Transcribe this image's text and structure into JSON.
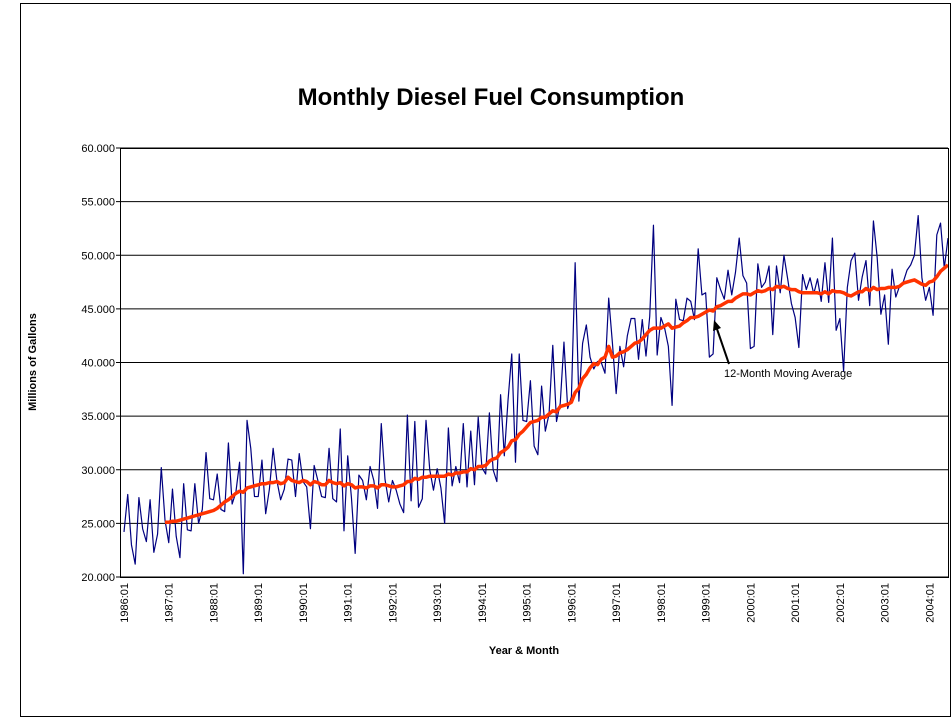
{
  "chart_data": {
    "type": "line",
    "title": "Monthly Diesel Fuel Consumption",
    "xlabel": "Year & Month",
    "ylabel": "Millions of Gallons",
    "annotation": "12-Month Moving Average",
    "ylim": [
      20,
      60
    ],
    "yticks": [
      {
        "value": 20,
        "label": "20.000"
      },
      {
        "value": 25,
        "label": "25.000"
      },
      {
        "value": 30,
        "label": "30.000"
      },
      {
        "value": 35,
        "label": "35.000"
      },
      {
        "value": 40,
        "label": "40.000"
      },
      {
        "value": 45,
        "label": "45.000"
      },
      {
        "value": 50,
        "label": "50.000"
      },
      {
        "value": 55,
        "label": "55.000"
      },
      {
        "value": 60,
        "label": "60.000"
      }
    ],
    "grid": true,
    "categories": [
      "1986:01",
      null,
      null,
      null,
      null,
      null,
      null,
      null,
      null,
      null,
      null,
      null,
      "1987:01",
      null,
      null,
      null,
      null,
      null,
      null,
      null,
      null,
      null,
      null,
      null,
      "1988:01",
      null,
      null,
      null,
      null,
      null,
      null,
      null,
      null,
      null,
      null,
      null,
      "1989:01",
      null,
      null,
      null,
      null,
      null,
      null,
      null,
      null,
      null,
      null,
      null,
      "1990:01",
      null,
      null,
      null,
      null,
      null,
      null,
      null,
      null,
      null,
      null,
      null,
      "1991:01",
      null,
      null,
      null,
      null,
      null,
      null,
      null,
      null,
      null,
      null,
      null,
      "1992:01",
      null,
      null,
      null,
      null,
      null,
      null,
      null,
      null,
      null,
      null,
      null,
      "1993:01",
      null,
      null,
      null,
      null,
      null,
      null,
      null,
      null,
      null,
      null,
      null,
      "1994:01",
      null,
      null,
      null,
      null,
      null,
      null,
      null,
      null,
      null,
      null,
      null,
      "1995:01",
      null,
      null,
      null,
      null,
      null,
      null,
      null,
      null,
      null,
      null,
      null,
      "1996:01",
      null,
      null,
      null,
      null,
      null,
      null,
      null,
      null,
      null,
      null,
      null,
      "1997:01",
      null,
      null,
      null,
      null,
      null,
      null,
      null,
      null,
      null,
      null,
      null,
      "1998:01",
      null,
      null,
      null,
      null,
      null,
      null,
      null,
      null,
      null,
      null,
      null,
      "1999:01",
      null,
      null,
      null,
      null,
      null,
      null,
      null,
      null,
      null,
      null,
      null,
      "2000:01",
      null,
      null,
      null,
      null,
      null,
      null,
      null,
      null,
      null,
      null,
      null,
      "2001:01",
      null,
      null,
      null,
      null,
      null,
      null,
      null,
      null,
      null,
      null,
      null,
      "2002:01",
      null,
      null,
      null,
      null,
      null,
      null,
      null,
      null,
      null,
      null,
      null,
      "2003:01",
      null,
      null,
      null,
      null,
      null,
      null,
      null,
      null,
      null,
      null,
      null,
      "2004:01",
      null,
      null,
      null,
      null,
      null
    ],
    "series": [
      {
        "color": "#000080",
        "width": 1.2,
        "values": [
          24.2,
          27.7,
          23.0,
          21.2,
          27.4,
          24.5,
          23.3,
          27.2,
          22.3,
          24.0,
          30.2,
          25.3,
          23.2,
          28.2,
          23.8,
          21.8,
          28.7,
          24.4,
          24.3,
          28.7,
          25.0,
          26.3,
          31.6,
          27.3,
          27.2,
          29.6,
          26.3,
          26.1,
          32.5,
          26.8,
          27.9,
          30.7,
          20.3,
          34.6,
          32.0,
          27.5,
          27.5,
          30.9,
          25.9,
          28.2,
          32.0,
          29.0,
          27.2,
          28.2,
          31.0,
          30.9,
          27.5,
          31.5,
          28.9,
          28.4,
          24.5,
          30.4,
          29.0,
          27.5,
          27.4,
          32.0,
          27.3,
          27.0,
          33.8,
          24.3,
          31.3,
          27.4,
          22.2,
          29.5,
          29.0,
          27.2,
          30.3,
          29.0,
          26.4,
          34.3,
          29.1,
          27.0,
          29.0,
          28.1,
          26.8,
          26.0,
          35.1,
          27.1,
          34.5,
          26.5,
          27.3,
          34.6,
          30.0,
          28.1,
          30.1,
          28.3,
          25.0,
          33.9,
          28.5,
          30.3,
          28.8,
          34.3,
          28.4,
          33.6,
          28.6,
          34.9,
          30.2,
          29.6,
          35.3,
          30.0,
          28.9,
          37.0,
          31.3,
          36.5,
          40.8,
          30.7,
          40.8,
          34.6,
          34.5,
          38.3,
          32.2,
          31.4,
          37.8,
          33.6,
          35.2,
          41.6,
          34.5,
          36.2,
          41.9,
          35.7,
          36.8,
          49.3,
          36.4,
          41.8,
          43.5,
          40.5,
          39.4,
          40.1,
          40.0,
          39.0,
          46.0,
          41.8,
          37.1,
          41.5,
          39.6,
          42.5,
          44.1,
          44.1,
          40.3,
          44.0,
          40.6,
          44.3,
          52.8,
          40.7,
          44.2,
          43.2,
          41.5,
          36.0,
          45.9,
          44.0,
          43.9,
          46.0,
          45.7,
          44.0,
          50.6,
          46.3,
          46.5,
          40.5,
          40.8,
          47.9,
          46.8,
          45.9,
          48.6,
          46.3,
          48.4,
          51.6,
          48.1,
          47.4,
          41.3,
          41.5,
          49.2,
          47.0,
          47.5,
          49.0,
          42.6,
          49.0,
          46.5,
          50.0,
          47.8,
          45.5,
          44.2,
          41.4,
          48.2,
          46.8,
          47.9,
          46.4,
          47.8,
          45.7,
          49.3,
          45.6,
          51.6,
          43.0,
          44.1,
          39.2,
          47.0,
          49.5,
          50.2,
          45.8,
          48.0,
          49.5,
          45.3,
          53.2,
          49.8,
          44.5,
          46.3,
          41.7,
          48.7,
          46.1,
          47.1,
          47.5,
          48.6,
          49.1,
          50.0,
          53.7,
          47.9,
          45.8,
          47.0,
          44.4,
          51.9,
          53.0,
          48.8,
          51.6
        ]
      },
      {
        "color": "#ff3300",
        "width": 3.5,
        "values": [
          null,
          null,
          null,
          null,
          null,
          null,
          null,
          null,
          null,
          null,
          null,
          25.1,
          25.1,
          25.2,
          25.2,
          25.3,
          25.4,
          25.5,
          25.6,
          25.7,
          25.8,
          25.9,
          26.0,
          26.1,
          26.2,
          26.4,
          26.7,
          27.0,
          27.2,
          27.5,
          27.8,
          28.0,
          27.9,
          28.3,
          28.4,
          28.5,
          28.6,
          28.7,
          28.7,
          28.8,
          28.8,
          28.9,
          28.7,
          28.8,
          29.3,
          29.0,
          28.9,
          28.8,
          29.0,
          28.9,
          28.6,
          28.9,
          28.8,
          28.6,
          28.6,
          29.0,
          28.8,
          28.7,
          28.8,
          28.5,
          28.7,
          28.6,
          28.3,
          28.4,
          28.4,
          28.3,
          28.5,
          28.5,
          28.3,
          28.6,
          28.6,
          28.5,
          28.4,
          28.4,
          28.5,
          28.6,
          28.9,
          28.9,
          29.2,
          29.1,
          29.3,
          29.3,
          29.4,
          29.4,
          29.4,
          29.4,
          29.4,
          29.6,
          29.5,
          29.7,
          29.7,
          29.8,
          29.8,
          30.1,
          30.0,
          30.3,
          30.3,
          30.4,
          30.8,
          31.0,
          31.1,
          31.6,
          31.8,
          32.1,
          32.7,
          32.8,
          33.3,
          33.6,
          34.0,
          34.4,
          34.5,
          34.6,
          34.9,
          34.9,
          35.2,
          35.5,
          35.4,
          35.9,
          36.0,
          36.1,
          36.3,
          37.2,
          37.6,
          38.5,
          38.9,
          39.5,
          39.9,
          39.8,
          40.3,
          40.5,
          41.5,
          40.5,
          40.6,
          40.9,
          41.0,
          41.2,
          41.5,
          41.8,
          41.9,
          42.2,
          42.6,
          43.0,
          43.2,
          43.2,
          43.2,
          43.4,
          43.6,
          43.2,
          43.3,
          43.4,
          43.7,
          43.9,
          44.2,
          44.2,
          44.3,
          44.5,
          44.7,
          44.9,
          44.8,
          45.2,
          45.3,
          45.5,
          45.7,
          45.7,
          46.0,
          46.2,
          46.4,
          46.4,
          46.3,
          46.5,
          46.7,
          46.6,
          46.7,
          46.9,
          46.8,
          47.1,
          47.0,
          47.1,
          46.9,
          46.8,
          46.8,
          46.6,
          46.5,
          46.5,
          46.5,
          46.5,
          46.5,
          46.4,
          46.6,
          46.4,
          46.7,
          46.6,
          46.6,
          46.5,
          46.3,
          46.2,
          46.4,
          46.6,
          46.6,
          46.9,
          46.7,
          47.0,
          46.8,
          46.9,
          46.9,
          47.0,
          47.0,
          47.0,
          47.1,
          47.4,
          47.5,
          47.6,
          47.7,
          47.5,
          47.3,
          47.2,
          47.5,
          47.6,
          48.0,
          48.5,
          48.8,
          49.1
        ]
      }
    ]
  }
}
